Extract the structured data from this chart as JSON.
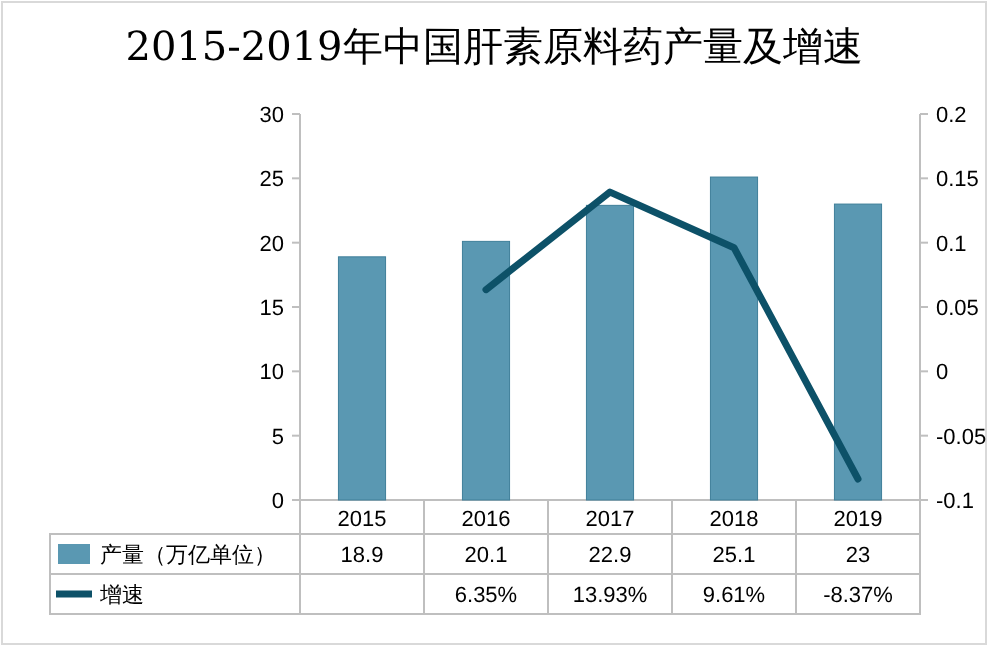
{
  "chart_data": {
    "type": "bar",
    "title": "2015-2019年中国肝素原料药产量及增速",
    "categories": [
      "2015",
      "2016",
      "2017",
      "2018",
      "2019"
    ],
    "series": [
      {
        "name": "产量（万亿单位）",
        "color": "#5a98b2",
        "values": [
          18.9,
          20.1,
          22.9,
          25.1,
          23
        ],
        "value_labels": [
          "18.9",
          "20.1",
          "22.9",
          "25.1",
          "23"
        ]
      },
      {
        "name": "增速",
        "type": "line",
        "axis": "y2",
        "color": "#0d5168",
        "values": [
          null,
          0.0635,
          0.1393,
          0.0961,
          -0.0837
        ],
        "value_labels": [
          null,
          "6.35%",
          "13.93%",
          "9.61%",
          "-8.37%"
        ]
      }
    ],
    "ylim": [
      0,
      30
    ],
    "yticks": [
      0,
      5,
      10,
      15,
      20,
      25,
      30
    ],
    "y2lim": [
      -0.1,
      0.2
    ],
    "y2ticks": [
      -0.1,
      -0.05,
      0,
      0.05,
      0.1,
      0.15,
      0.2
    ],
    "legend": "bottom",
    "marker": "none",
    "line_style": "solid"
  }
}
